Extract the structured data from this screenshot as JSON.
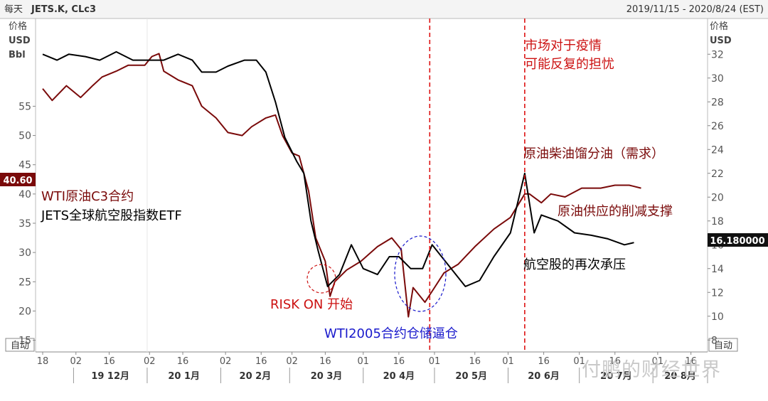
{
  "header": {
    "title_prefix": "每天",
    "title_symbols": "JETS.K, CLc3",
    "date_range": "2019/11/15 - 2020/8/24 (EST)"
  },
  "left_axis": {
    "label1": "价格",
    "label2": "USD",
    "label3": "Bbl",
    "auto": "自动"
  },
  "right_axis": {
    "label1": "价格",
    "label2": "USD",
    "auto": "自动"
  },
  "badges": {
    "left_value": "40.60",
    "right_value": "16.180000"
  },
  "annotations": {
    "wti_label": "WTI原油C3合约",
    "jets_label": "JETS全球航空股指数ETF",
    "market_worry_line1": "市场对于疫情",
    "market_worry_line2": "可能反复的担忧",
    "crude_demand": "原油柴油馏分油（需求）",
    "crude_supply": "原油供应的削减支撑",
    "airline_pressure": "航空股的再次承压",
    "risk_on": "RISK ON 开始",
    "wti2005": "WTI2005合约仓储逼仓"
  },
  "watermark": "付鹏的财经世界",
  "colors": {
    "wti_line": "#7a0a0a",
    "jets_line": "#000000",
    "annotation_red": "#cc1111",
    "annotation_blue": "#1a1acc",
    "dashed_vline": "#dd1111",
    "left_badge_bg": "#7a0a0a",
    "right_badge_bg": "#111111"
  },
  "chart_data": {
    "type": "line",
    "title": "",
    "x_range": [
      "2019-11-15",
      "2020-08-24"
    ],
    "x_tick_labels": [
      "18",
      "02",
      "16",
      "02",
      "16",
      "02",
      "16",
      "02",
      "16",
      "01",
      "16",
      "01",
      "16",
      "01",
      "16",
      "01",
      "16",
      "01",
      "16"
    ],
    "month_labels": [
      "19 12月",
      "20 1月",
      "20 2月",
      "20 3月",
      "20 4月",
      "20 5月",
      "20 6月",
      "20 7月",
      "20 8月"
    ],
    "left_axis": {
      "unit": "USD/Bbl",
      "range": [
        13,
        70
      ],
      "ticks": [
        15,
        20,
        25,
        30,
        35,
        40,
        45,
        50,
        55
      ]
    },
    "right_axis": {
      "unit": "USD",
      "range": [
        7,
        35
      ],
      "ticks": [
        8,
        10,
        12,
        14,
        16,
        18,
        20,
        22,
        24,
        26,
        28,
        30,
        32
      ]
    },
    "series": [
      {
        "name": "WTI原油C3合约",
        "axis": "left",
        "points": [
          [
            "2019-11-18",
            58.0
          ],
          [
            "2019-11-22",
            56.0
          ],
          [
            "2019-11-28",
            58.5
          ],
          [
            "2019-12-04",
            56.5
          ],
          [
            "2019-12-09",
            58.5
          ],
          [
            "2019-12-13",
            60.0
          ],
          [
            "2019-12-19",
            61.0
          ],
          [
            "2019-12-24",
            62.0
          ],
          [
            "2019-12-31",
            62.0
          ],
          [
            "2020-01-03",
            63.5
          ],
          [
            "2020-01-06",
            64.0
          ],
          [
            "2020-01-08",
            61.0
          ],
          [
            "2020-01-14",
            59.5
          ],
          [
            "2020-01-20",
            58.5
          ],
          [
            "2020-01-24",
            55.0
          ],
          [
            "2020-01-30",
            53.0
          ],
          [
            "2020-02-04",
            50.5
          ],
          [
            "2020-02-10",
            50.0
          ],
          [
            "2020-02-14",
            51.5
          ],
          [
            "2020-02-20",
            53.0
          ],
          [
            "2020-02-24",
            53.5
          ],
          [
            "2020-02-27",
            50.0
          ],
          [
            "2020-03-02",
            47.0
          ],
          [
            "2020-03-05",
            46.5
          ],
          [
            "2020-03-09",
            40.5
          ],
          [
            "2020-03-12",
            32.5
          ],
          [
            "2020-03-16",
            28.5
          ],
          [
            "2020-03-18",
            22.5
          ],
          [
            "2020-03-20",
            25.0
          ],
          [
            "2020-03-25",
            27.0
          ],
          [
            "2020-03-31",
            28.5
          ],
          [
            "2020-04-07",
            31.0
          ],
          [
            "2020-04-13",
            32.5
          ],
          [
            "2020-04-17",
            30.5
          ],
          [
            "2020-04-20",
            19.0
          ],
          [
            "2020-04-22",
            24.0
          ],
          [
            "2020-04-27",
            21.5
          ],
          [
            "2020-05-01",
            24.0
          ],
          [
            "2020-05-05",
            26.5
          ],
          [
            "2020-05-11",
            28.0
          ],
          [
            "2020-05-18",
            31.0
          ],
          [
            "2020-05-26",
            34.0
          ],
          [
            "2020-06-02",
            36.0
          ],
          [
            "2020-06-08",
            40.0
          ],
          [
            "2020-06-10",
            40.0
          ],
          [
            "2020-06-15",
            38.5
          ],
          [
            "2020-06-19",
            40.0
          ],
          [
            "2020-06-25",
            39.5
          ],
          [
            "2020-07-02",
            41.0
          ],
          [
            "2020-07-10",
            41.0
          ],
          [
            "2020-07-16",
            41.5
          ],
          [
            "2020-07-22",
            41.5
          ],
          [
            "2020-07-27",
            41.0
          ]
        ]
      },
      {
        "name": "JETS全球航空股指数ETF",
        "axis": "right",
        "points": [
          [
            "2019-11-18",
            32.0
          ],
          [
            "2019-11-24",
            31.5
          ],
          [
            "2019-11-29",
            32.0
          ],
          [
            "2019-12-06",
            31.8
          ],
          [
            "2019-12-12",
            31.5
          ],
          [
            "2019-12-19",
            32.2
          ],
          [
            "2019-12-26",
            31.5
          ],
          [
            "2020-01-03",
            31.5
          ],
          [
            "2020-01-08",
            31.5
          ],
          [
            "2020-01-14",
            32.0
          ],
          [
            "2020-01-20",
            31.5
          ],
          [
            "2020-01-24",
            30.5
          ],
          [
            "2020-01-30",
            30.5
          ],
          [
            "2020-02-04",
            31.0
          ],
          [
            "2020-02-11",
            31.5
          ],
          [
            "2020-02-16",
            31.5
          ],
          [
            "2020-02-20",
            30.5
          ],
          [
            "2020-02-24",
            28.0
          ],
          [
            "2020-02-28",
            25.0
          ],
          [
            "2020-03-04",
            23.0
          ],
          [
            "2020-03-07",
            22.0
          ],
          [
            "2020-03-10",
            18.0
          ],
          [
            "2020-03-13",
            15.5
          ],
          [
            "2020-03-17",
            12.5
          ],
          [
            "2020-03-22",
            13.5
          ],
          [
            "2020-03-27",
            16.0
          ],
          [
            "2020-04-01",
            14.0
          ],
          [
            "2020-04-07",
            13.5
          ],
          [
            "2020-04-12",
            15.0
          ],
          [
            "2020-04-16",
            15.0
          ],
          [
            "2020-04-21",
            14.0
          ],
          [
            "2020-04-26",
            14.0
          ],
          [
            "2020-04-30",
            16.0
          ],
          [
            "2020-05-04",
            15.0
          ],
          [
            "2020-05-08",
            14.0
          ],
          [
            "2020-05-14",
            12.5
          ],
          [
            "2020-05-20",
            13.0
          ],
          [
            "2020-05-26",
            15.0
          ],
          [
            "2020-06-02",
            17.0
          ],
          [
            "2020-06-08",
            22.0
          ],
          [
            "2020-06-12",
            17.0
          ],
          [
            "2020-06-15",
            18.5
          ],
          [
            "2020-06-22",
            18.0
          ],
          [
            "2020-06-29",
            17.0
          ],
          [
            "2020-07-06",
            16.8
          ],
          [
            "2020-07-13",
            16.5
          ],
          [
            "2020-07-20",
            16.0
          ],
          [
            "2020-07-24",
            16.18
          ]
        ]
      }
    ],
    "vertical_markers": [
      {
        "date": "2020-04-29",
        "style": "dashed"
      },
      {
        "date": "2020-06-08",
        "style": "dashed"
      }
    ],
    "grid": false,
    "current_values": {
      "left": 40.6,
      "right": 16.18
    }
  }
}
